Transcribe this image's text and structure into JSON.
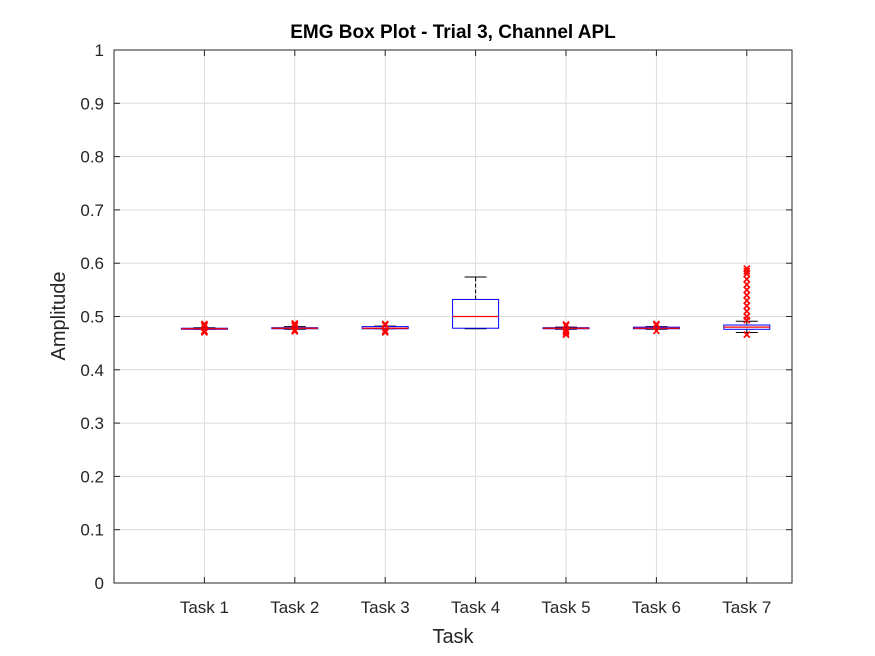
{
  "chart_data": {
    "type": "box",
    "title": "EMG Box Plot - Trial 3, Channel APL",
    "xlabel": "Task",
    "ylabel": "Amplitude",
    "ylim": [
      0,
      1
    ],
    "yticks": [
      "0",
      "0.1",
      "0.2",
      "0.3",
      "0.4",
      "0.5",
      "0.6",
      "0.7",
      "0.8",
      "0.9",
      "1"
    ],
    "grid": true,
    "categories": [
      "Task 1",
      "Task 2",
      "Task 3",
      "Task 4",
      "Task 5",
      "Task 6",
      "Task 7"
    ],
    "boxes": [
      {
        "min": 0.476,
        "q1": 0.476,
        "median": 0.477,
        "q3": 0.478,
        "max": 0.479,
        "outliers": [
          0.47,
          0.472,
          0.473,
          0.482,
          0.484,
          0.486
        ]
      },
      {
        "min": 0.476,
        "q1": 0.477,
        "median": 0.478,
        "q3": 0.479,
        "max": 0.481,
        "outliers": [
          0.472,
          0.474,
          0.483,
          0.485,
          0.487
        ]
      },
      {
        "min": 0.477,
        "q1": 0.477,
        "median": 0.478,
        "q3": 0.481,
        "max": 0.482,
        "outliers": [
          0.47,
          0.473,
          0.484,
          0.486
        ]
      },
      {
        "min": 0.477,
        "q1": 0.478,
        "median": 0.5,
        "q3": 0.532,
        "max": 0.574,
        "outliers": []
      },
      {
        "min": 0.476,
        "q1": 0.477,
        "median": 0.478,
        "q3": 0.479,
        "max": 0.48,
        "outliers": [
          0.466,
          0.47,
          0.473,
          0.483,
          0.485
        ]
      },
      {
        "min": 0.476,
        "q1": 0.477,
        "median": 0.478,
        "q3": 0.48,
        "max": 0.481,
        "outliers": [
          0.473,
          0.484,
          0.486
        ]
      },
      {
        "min": 0.47,
        "q1": 0.476,
        "median": 0.48,
        "q3": 0.484,
        "max": 0.491,
        "outliers": [
          0.466,
          0.493,
          0.5,
          0.51,
          0.52,
          0.53,
          0.54,
          0.55,
          0.56,
          0.57,
          0.58,
          0.585,
          0.59
        ]
      }
    ],
    "colors": {
      "box": "#0000ff",
      "median": "#ff0000",
      "whisker": "#000000",
      "outlier": "#ff0000",
      "grid": "#dcdcdc",
      "axis": "#262626"
    }
  }
}
